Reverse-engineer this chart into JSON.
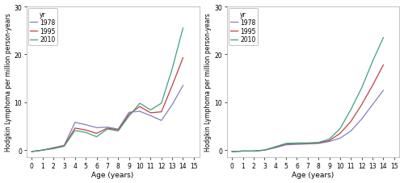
{
  "ages": [
    0,
    1,
    2,
    3,
    4,
    5,
    6,
    7,
    8,
    9,
    10,
    11,
    12,
    13,
    14
  ],
  "boys": {
    "1978": [
      -0.3,
      0.0,
      0.5,
      1.0,
      5.8,
      5.3,
      4.7,
      4.8,
      4.4,
      7.9,
      8.1,
      7.2,
      6.2,
      9.5,
      13.5
    ],
    "1995": [
      -0.3,
      0.0,
      0.4,
      0.9,
      4.6,
      4.2,
      3.5,
      4.6,
      4.2,
      7.5,
      9.1,
      7.8,
      8.0,
      13.5,
      19.3
    ],
    "2010": [
      -0.3,
      0.0,
      0.3,
      0.8,
      4.1,
      3.7,
      2.8,
      4.4,
      4.0,
      7.1,
      9.8,
      8.4,
      9.8,
      17.0,
      25.5
    ]
  },
  "girls": {
    "1978": [
      -0.3,
      -0.2,
      -0.2,
      0.0,
      0.5,
      1.1,
      1.2,
      1.3,
      1.4,
      1.8,
      2.5,
      4.0,
      6.5,
      9.5,
      12.5
    ],
    "1995": [
      -0.3,
      -0.2,
      -0.2,
      0.0,
      0.6,
      1.3,
      1.4,
      1.4,
      1.5,
      2.0,
      3.5,
      6.0,
      9.5,
      13.5,
      17.8
    ],
    "2010": [
      -0.3,
      -0.2,
      -0.2,
      0.0,
      0.7,
      1.4,
      1.5,
      1.5,
      1.6,
      2.3,
      4.5,
      8.5,
      13.0,
      18.5,
      23.5
    ]
  },
  "colors": {
    "1978": "#8080c0",
    "1995": "#c04040",
    "2010": "#40a080"
  },
  "ylim": [
    -1.5,
    30
  ],
  "yticks": [
    0,
    10,
    20,
    30
  ],
  "xticks": [
    0,
    1,
    2,
    3,
    4,
    5,
    6,
    7,
    8,
    9,
    10,
    11,
    12,
    13,
    14,
    15
  ],
  "xlabel": "Age (years)",
  "ylabel": "Hodgkin Lymphoma per million person-years",
  "legend_title": "yr",
  "legend_labels": [
    "1978",
    "1995",
    "2010"
  ],
  "background_color": "#ffffff",
  "panel_bg": "#ffffff"
}
